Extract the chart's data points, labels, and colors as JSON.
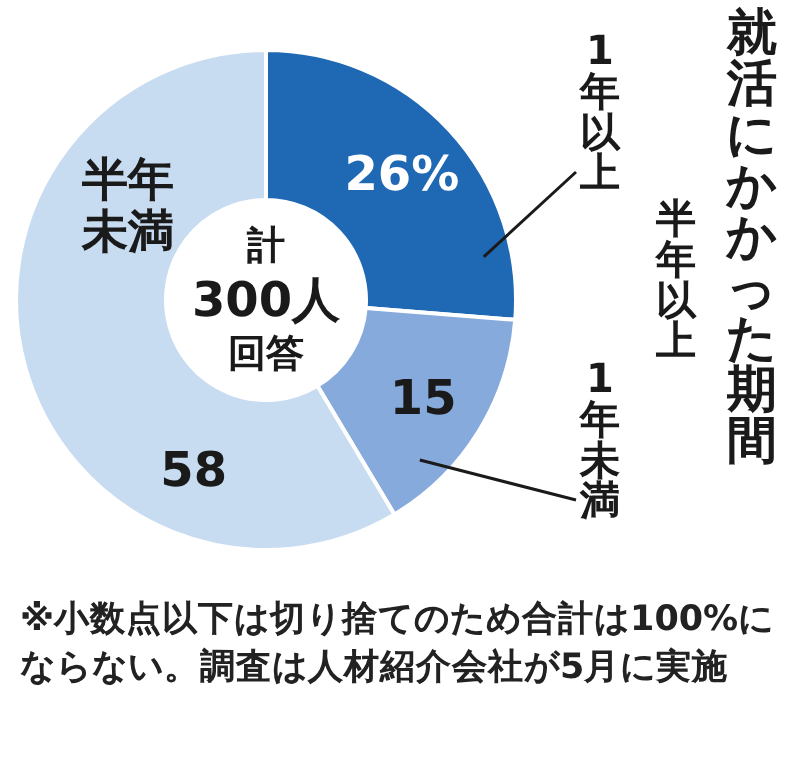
{
  "chart_data": {
    "type": "donut",
    "title": "就活にかかった期間",
    "categories": [
      "1年以上",
      "半年以上1年未満",
      "半年未満"
    ],
    "values": [
      26,
      15,
      58
    ],
    "value_labels": [
      "26%",
      "15",
      "58"
    ],
    "colors": [
      "#1f68b4",
      "#86aadb",
      "#c8dcf1"
    ],
    "annotations": [
      "計300人回答",
      "※小数点以下は切り捨てのため合計は100%にならない。調査は人材紹介会社が5月に実施"
    ]
  }
}
